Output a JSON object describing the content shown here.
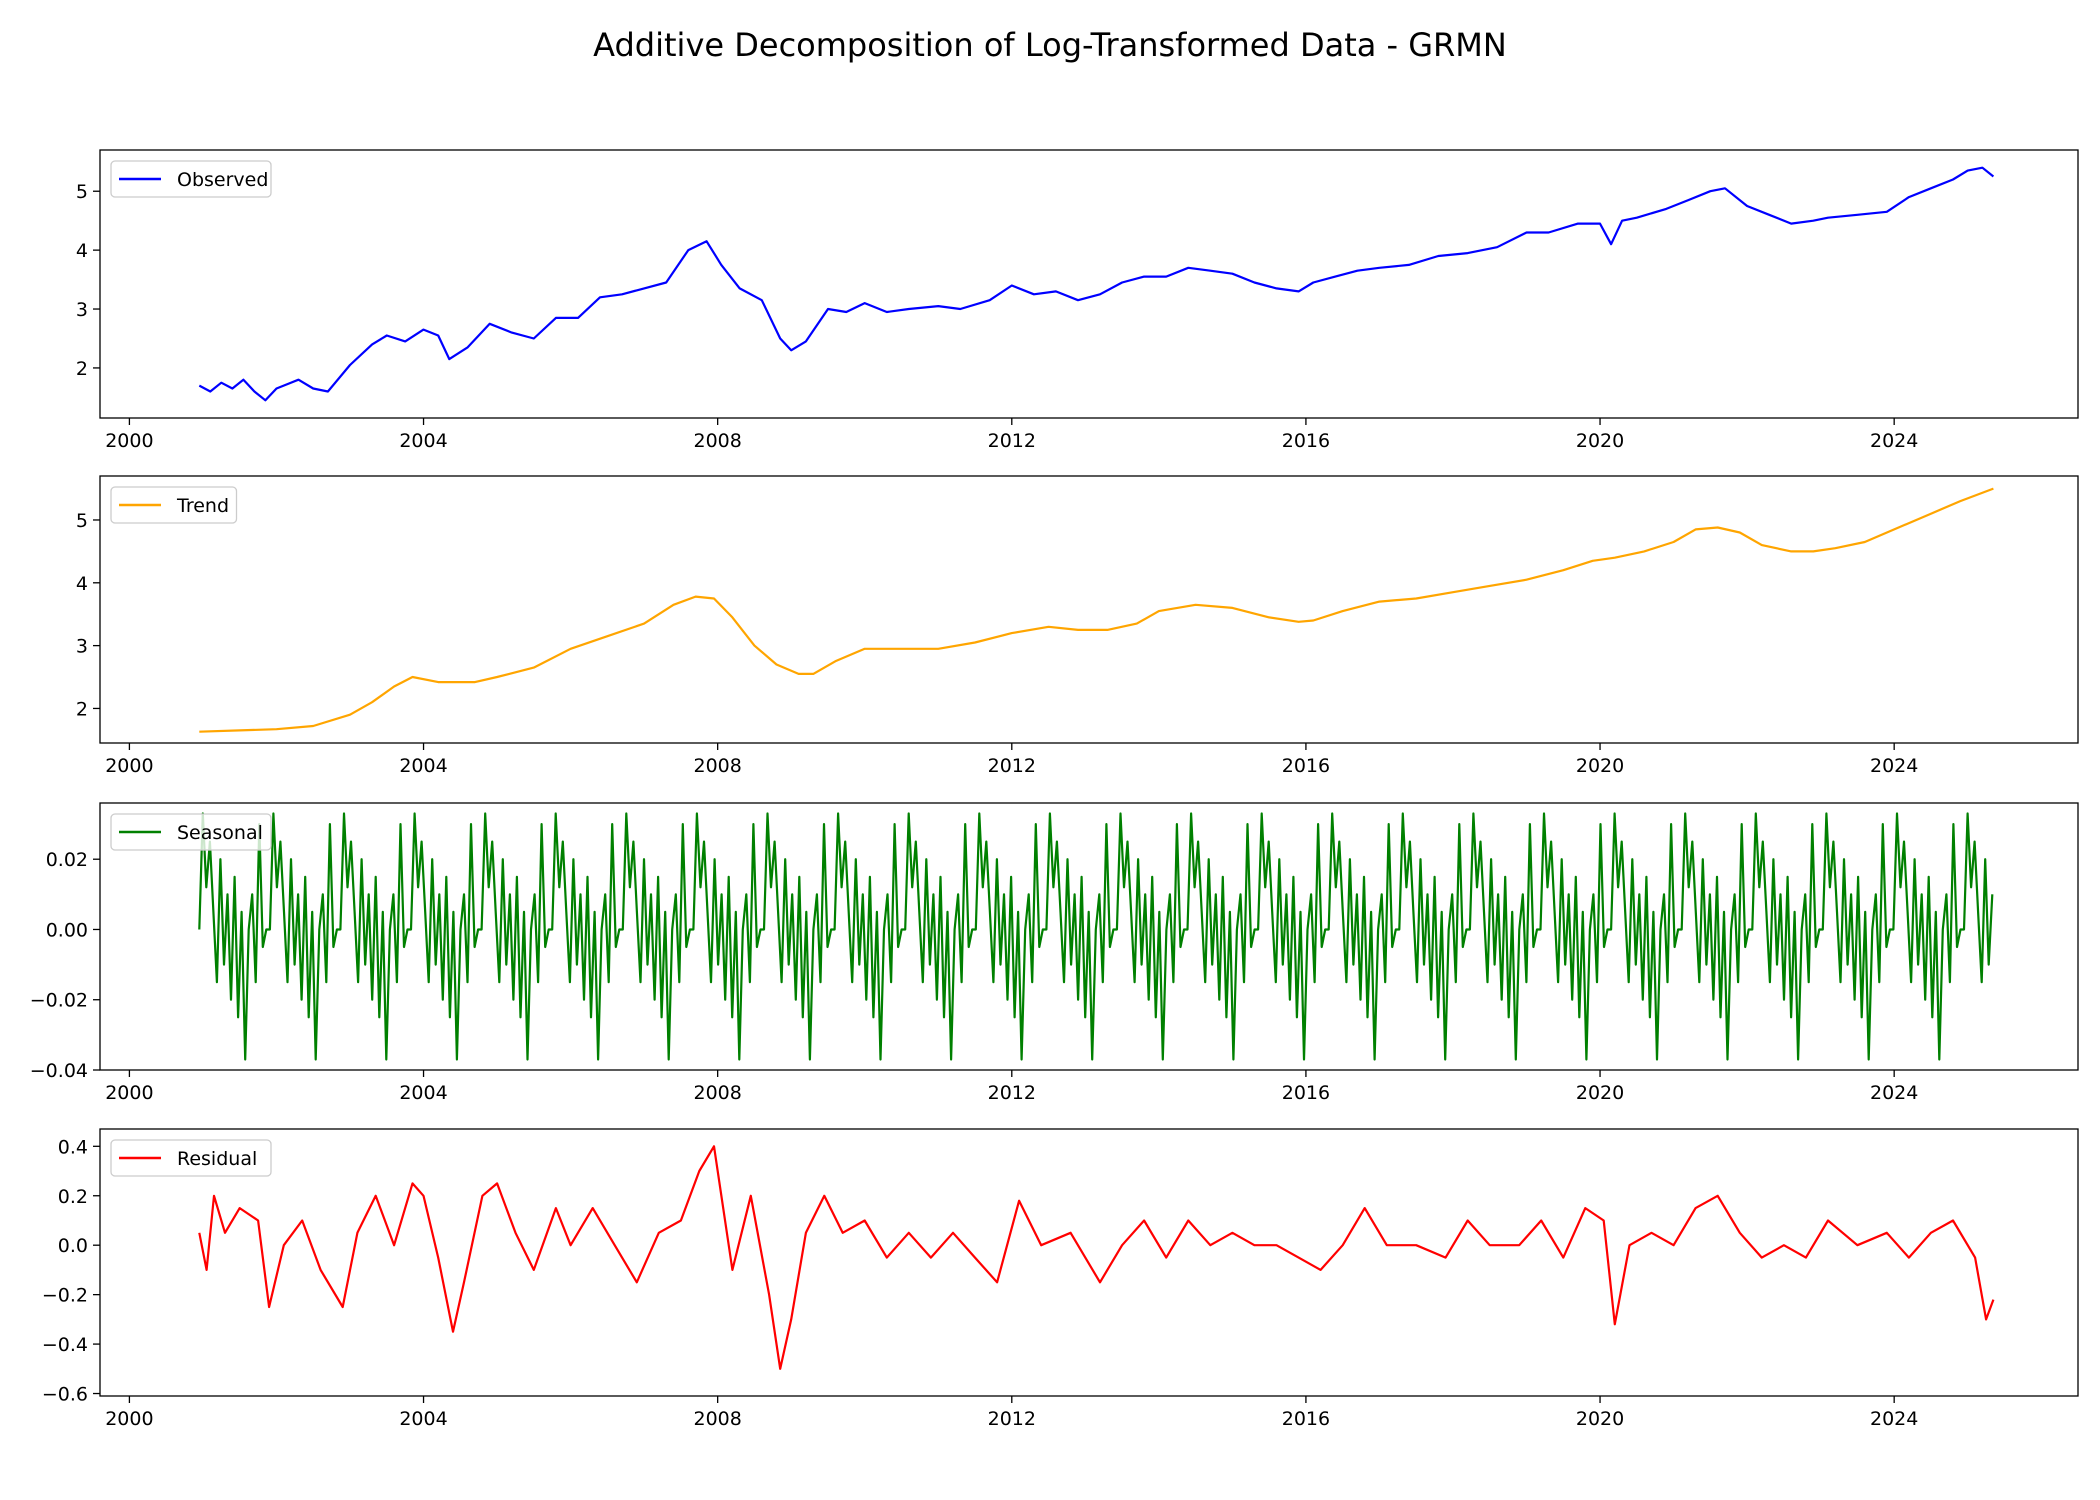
{
  "title": "Additive Decomposition of Log-Transformed Data - GRMN",
  "chart_data": [
    {
      "type": "line",
      "legend": "Observed",
      "legend_loc": "upper-left",
      "color": "#0000ff",
      "xlim": [
        1999.6,
        2026.5
      ],
      "ylim": [
        1.15,
        5.7
      ],
      "xticks": [
        2000,
        2004,
        2008,
        2012,
        2016,
        2020,
        2024
      ],
      "xtick_labels": [
        "2000",
        "2004",
        "2008",
        "2012",
        "2016",
        "2020",
        "2024"
      ],
      "yticks": [
        2,
        3,
        4,
        5
      ],
      "ytick_labels": [
        "2",
        "3",
        "4",
        "5"
      ],
      "x": [
        2000.95,
        2001.1,
        2001.25,
        2001.4,
        2001.55,
        2001.7,
        2001.85,
        2002.0,
        2002.3,
        2002.5,
        2002.7,
        2003.0,
        2003.3,
        2003.5,
        2003.75,
        2004.0,
        2004.2,
        2004.35,
        2004.6,
        2004.9,
        2005.2,
        2005.5,
        2005.8,
        2006.1,
        2006.4,
        2006.7,
        2007.0,
        2007.3,
        2007.6,
        2007.85,
        2008.05,
        2008.3,
        2008.6,
        2008.85,
        2009.0,
        2009.2,
        2009.5,
        2009.75,
        2010.0,
        2010.3,
        2010.6,
        2011.0,
        2011.3,
        2011.7,
        2012.0,
        2012.3,
        2012.6,
        2012.9,
        2013.2,
        2013.5,
        2013.8,
        2014.1,
        2014.4,
        2014.7,
        2015.0,
        2015.3,
        2015.6,
        2015.9,
        2016.1,
        2016.4,
        2016.7,
        2017.0,
        2017.4,
        2017.8,
        2018.2,
        2018.6,
        2019.0,
        2019.3,
        2019.7,
        2020.0,
        2020.15,
        2020.3,
        2020.5,
        2020.9,
        2021.2,
        2021.5,
        2021.7,
        2022.0,
        2022.3,
        2022.6,
        2022.9,
        2023.1,
        2023.5,
        2023.9,
        2024.2,
        2024.5,
        2024.8,
        2025.0,
        2025.2,
        2025.35
      ],
      "y": [
        1.7,
        1.6,
        1.75,
        1.65,
        1.8,
        1.6,
        1.45,
        1.65,
        1.8,
        1.65,
        1.6,
        2.05,
        2.4,
        2.55,
        2.45,
        2.65,
        2.55,
        2.15,
        2.35,
        2.75,
        2.6,
        2.5,
        2.85,
        2.85,
        3.2,
        3.25,
        3.35,
        3.45,
        4.0,
        4.15,
        3.75,
        3.35,
        3.15,
        2.5,
        2.3,
        2.45,
        3.0,
        2.95,
        3.1,
        2.95,
        3.0,
        3.05,
        3.0,
        3.15,
        3.4,
        3.25,
        3.3,
        3.15,
        3.25,
        3.45,
        3.55,
        3.55,
        3.7,
        3.65,
        3.6,
        3.45,
        3.35,
        3.3,
        3.45,
        3.55,
        3.65,
        3.7,
        3.75,
        3.9,
        3.95,
        4.05,
        4.3,
        4.3,
        4.45,
        4.45,
        4.1,
        4.5,
        4.55,
        4.7,
        4.85,
        5.0,
        5.05,
        4.75,
        4.6,
        4.45,
        4.5,
        4.55,
        4.6,
        4.65,
        4.9,
        5.05,
        5.2,
        5.35,
        5.4,
        5.25
      ]
    },
    {
      "type": "line",
      "legend": "Trend",
      "legend_loc": "upper-left",
      "color": "#ffa500",
      "xlim": [
        1999.6,
        2026.5
      ],
      "ylim": [
        1.45,
        5.7
      ],
      "xticks": [
        2000,
        2004,
        2008,
        2012,
        2016,
        2020,
        2024
      ],
      "xtick_labels": [
        "2000",
        "2004",
        "2008",
        "2012",
        "2016",
        "2020",
        "2024"
      ],
      "yticks": [
        2,
        3,
        4,
        5
      ],
      "ytick_labels": [
        "2",
        "3",
        "4",
        "5"
      ],
      "x": [
        2000.95,
        2001.5,
        2002.0,
        2002.5,
        2003.0,
        2003.3,
        2003.6,
        2003.85,
        2004.2,
        2004.7,
        2005.0,
        2005.5,
        2006.0,
        2006.5,
        2007.0,
        2007.4,
        2007.7,
        2007.95,
        2008.2,
        2008.5,
        2008.8,
        2009.1,
        2009.3,
        2009.6,
        2010.0,
        2010.5,
        2011.0,
        2011.5,
        2012.0,
        2012.5,
        2012.9,
        2013.3,
        2013.7,
        2014.0,
        2014.5,
        2015.0,
        2015.5,
        2015.9,
        2016.1,
        2016.5,
        2017.0,
        2017.5,
        2018.0,
        2018.5,
        2019.0,
        2019.5,
        2019.9,
        2020.2,
        2020.6,
        2021.0,
        2021.3,
        2021.6,
        2021.9,
        2022.2,
        2022.6,
        2022.9,
        2023.2,
        2023.6,
        2024.0,
        2024.5,
        2024.9,
        2025.35
      ],
      "y": [
        1.63,
        1.65,
        1.67,
        1.72,
        1.9,
        2.1,
        2.35,
        2.5,
        2.42,
        2.42,
        2.5,
        2.65,
        2.95,
        3.15,
        3.35,
        3.65,
        3.78,
        3.75,
        3.45,
        3.0,
        2.7,
        2.55,
        2.55,
        2.75,
        2.95,
        2.95,
        2.95,
        3.05,
        3.2,
        3.3,
        3.25,
        3.25,
        3.35,
        3.55,
        3.65,
        3.6,
        3.45,
        3.38,
        3.4,
        3.55,
        3.7,
        3.75,
        3.85,
        3.95,
        4.05,
        4.2,
        4.35,
        4.4,
        4.5,
        4.65,
        4.85,
        4.88,
        4.8,
        4.6,
        4.5,
        4.5,
        4.55,
        4.65,
        4.85,
        5.1,
        5.3,
        5.5
      ]
    },
    {
      "type": "line",
      "legend": "Seasonal",
      "legend_loc": "upper-left",
      "color": "#008000",
      "xlim": [
        1999.6,
        2026.5
      ],
      "ylim": [
        -0.04,
        0.036
      ],
      "xticks": [
        2000,
        2004,
        2008,
        2012,
        2016,
        2020,
        2024
      ],
      "xtick_labels": [
        "2000",
        "2004",
        "2008",
        "2012",
        "2016",
        "2020",
        "2024"
      ],
      "yticks": [
        -0.04,
        -0.02,
        0.0,
        0.02
      ],
      "ytick_labels": [
        "−0.04",
        "−0.02",
        "0.00",
        "0.02"
      ],
      "x_start": 2000.95,
      "x_end": 2025.35,
      "period_years": 0.96,
      "pattern": [
        0.0,
        0.033,
        0.012,
        0.025,
        0.005,
        -0.015,
        0.02,
        -0.01,
        0.01,
        -0.02,
        0.015,
        -0.025,
        0.005,
        -0.037,
        0.0,
        0.01,
        -0.015,
        0.03,
        -0.005,
        0.0
      ]
    },
    {
      "type": "line",
      "legend": "Residual",
      "legend_loc": "upper-left",
      "color": "#ff0000",
      "xlim": [
        1999.6,
        2026.5
      ],
      "ylim": [
        -0.61,
        0.47
      ],
      "xticks": [
        2000,
        2004,
        2008,
        2012,
        2016,
        2020,
        2024
      ],
      "xtick_labels": [
        "2000",
        "2004",
        "2008",
        "2012",
        "2016",
        "2020",
        "2024"
      ],
      "yticks": [
        -0.6,
        -0.4,
        -0.2,
        0.0,
        0.2,
        0.4
      ],
      "ytick_labels": [
        "−0.6",
        "−0.4",
        "−0.2",
        "0.0",
        "0.2",
        "0.4"
      ],
      "x": [
        2000.95,
        2001.05,
        2001.15,
        2001.3,
        2001.5,
        2001.75,
        2001.9,
        2002.1,
        2002.35,
        2002.6,
        2002.9,
        2003.1,
        2003.35,
        2003.6,
        2003.85,
        2004.0,
        2004.2,
        2004.4,
        2004.55,
        2004.8,
        2005.0,
        2005.25,
        2005.5,
        2005.8,
        2006.0,
        2006.3,
        2006.6,
        2006.9,
        2007.2,
        2007.5,
        2007.75,
        2007.95,
        2008.2,
        2008.45,
        2008.7,
        2008.85,
        2009.0,
        2009.2,
        2009.45,
        2009.7,
        2010.0,
        2010.3,
        2010.6,
        2010.9,
        2011.2,
        2011.5,
        2011.8,
        2012.1,
        2012.4,
        2012.8,
        2013.2,
        2013.5,
        2013.8,
        2014.1,
        2014.4,
        2014.7,
        2015.0,
        2015.3,
        2015.6,
        2015.9,
        2016.2,
        2016.5,
        2016.8,
        2017.1,
        2017.5,
        2017.9,
        2018.2,
        2018.5,
        2018.9,
        2019.2,
        2019.5,
        2019.8,
        2020.05,
        2020.2,
        2020.4,
        2020.7,
        2021.0,
        2021.3,
        2021.6,
        2021.9,
        2022.2,
        2022.5,
        2022.8,
        2023.1,
        2023.5,
        2023.9,
        2024.2,
        2024.5,
        2024.8,
        2025.1,
        2025.25,
        2025.35
      ],
      "y": [
        0.05,
        -0.1,
        0.2,
        0.05,
        0.15,
        0.1,
        -0.25,
        0.0,
        0.1,
        -0.1,
        -0.25,
        0.05,
        0.2,
        0.0,
        0.25,
        0.2,
        -0.05,
        -0.35,
        -0.15,
        0.2,
        0.25,
        0.05,
        -0.1,
        0.15,
        0.0,
        0.15,
        0.0,
        -0.15,
        0.05,
        0.1,
        0.3,
        0.4,
        -0.1,
        0.2,
        -0.2,
        -0.5,
        -0.3,
        0.05,
        0.2,
        0.05,
        0.1,
        -0.05,
        0.05,
        -0.05,
        0.05,
        -0.05,
        -0.15,
        0.18,
        0.0,
        0.05,
        -0.15,
        0.0,
        0.1,
        -0.05,
        0.1,
        0.0,
        0.05,
        0.0,
        0.0,
        -0.05,
        -0.1,
        0.0,
        0.15,
        0.0,
        0.0,
        -0.05,
        0.1,
        0.0,
        0.0,
        0.1,
        -0.05,
        0.15,
        0.1,
        -0.32,
        0.0,
        0.05,
        0.0,
        0.15,
        0.2,
        0.05,
        -0.05,
        0.0,
        -0.05,
        0.1,
        0.0,
        0.05,
        -0.05,
        0.05,
        0.1,
        -0.05,
        -0.3,
        -0.22
      ]
    }
  ]
}
